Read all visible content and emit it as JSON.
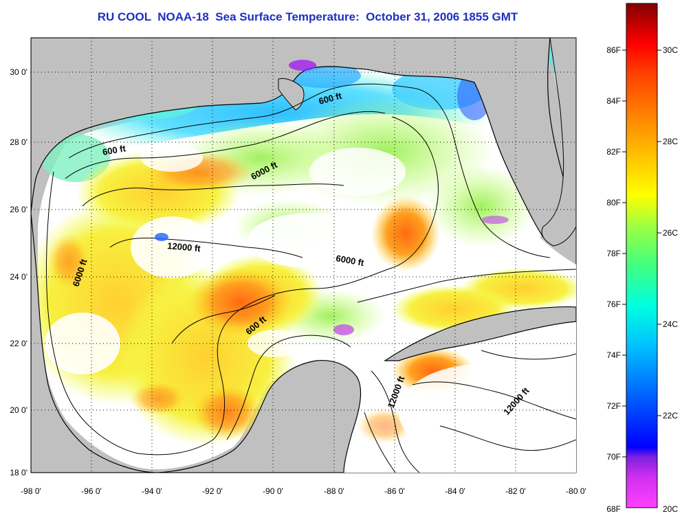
{
  "title": "RU COOL  NOAA-18  Sea Surface Temperature:  October 31, 2006 1855 GMT",
  "x_ticks": [
    "-98 0'",
    "-96 0'",
    "-94 0'",
    "-92 0'",
    "-90 0'",
    "-88 0'",
    "-86 0'",
    "-84 0'",
    "-82 0'",
    "-80 0'"
  ],
  "y_ticks": [
    "30 0'",
    "28 0'",
    "26 0'",
    "24 0'",
    "22 0'",
    "20 0'",
    "18 0'"
  ],
  "contour_labels": [
    "600 ft",
    "600 ft",
    "6000 ft",
    "12000 ft",
    "6000 ft",
    "6000 ft",
    "600 ft",
    "12000 ft",
    "12000 ft"
  ],
  "colorbar": {
    "fahrenheit": [
      "86F",
      "84F",
      "82F",
      "80F",
      "78F",
      "76F",
      "74F",
      "72F",
      "70F",
      "68F"
    ],
    "celsius": [
      "30C",
      "28C",
      "26C",
      "24C",
      "22C",
      "20C"
    ],
    "colors": [
      "#ff40ff",
      "#a020f0",
      "#0000ff",
      "#00a0ff",
      "#00ffff",
      "#40ff80",
      "#ffff00",
      "#ffa000",
      "#ff6000",
      "#ff0000",
      "#800000"
    ]
  },
  "map": {
    "land_color": "#c0c0c0",
    "cloud_color": "#ffffff",
    "lon_range": [
      -98,
      -80
    ],
    "lat_range": [
      18,
      31
    ]
  }
}
